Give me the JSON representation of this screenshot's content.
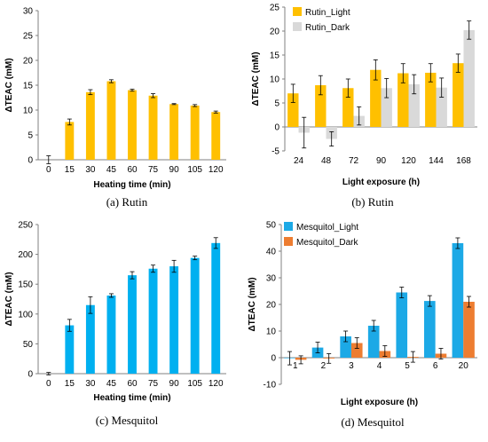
{
  "chart_data": [
    {
      "type": "bar",
      "caption": "(a) Rutin",
      "xlabel": "Heating time (min)",
      "ylabel": "ΔTEAC (mM)",
      "ylim": [
        0,
        30
      ],
      "yticks": [
        0,
        5,
        10,
        15,
        20,
        25,
        30
      ],
      "categories": [
        "0",
        "15",
        "30",
        "45",
        "60",
        "75",
        "90",
        "105",
        "120"
      ],
      "series": [
        {
          "color": "#FFC000",
          "values": [
            0,
            7.6,
            13.6,
            15.8,
            14.0,
            12.9,
            11.2,
            10.9,
            9.6
          ],
          "errors": [
            0.8,
            0.6,
            0.5,
            0.3,
            0.2,
            0.4,
            0.1,
            0.2,
            0.2
          ]
        }
      ],
      "legend": "none"
    },
    {
      "type": "bar",
      "caption": "(b) Rutin",
      "xlabel": "Light exposure (h)",
      "ylabel": "ΔTEAC (mM)",
      "ylim": [
        -5,
        25
      ],
      "yticks": [
        -5,
        0,
        5,
        10,
        15,
        20,
        25
      ],
      "categories": [
        "24",
        "48",
        "72",
        "90",
        "120",
        "144",
        "168"
      ],
      "series": [
        {
          "name": "Rutin_Light",
          "color": "#FFC000",
          "values": [
            7.0,
            8.7,
            8.1,
            11.9,
            11.2,
            11.3,
            13.3
          ],
          "errors": [
            1.9,
            2.0,
            1.9,
            2.1,
            2.0,
            1.9,
            1.9
          ]
        },
        {
          "name": "Rutin_Dark",
          "color": "#D9D9D9",
          "values": [
            -1.2,
            -2.5,
            2.3,
            8.1,
            8.9,
            8.2,
            20.2
          ],
          "errors": [
            3.2,
            1.5,
            1.9,
            2.0,
            2.0,
            2.0,
            1.9
          ]
        }
      ],
      "legend": "top-left"
    },
    {
      "type": "bar",
      "caption": "(c) Mesquitol",
      "xlabel": "Heating time (min)",
      "ylabel": "ΔTEAC (mM)",
      "ylim": [
        0,
        250
      ],
      "yticks": [
        0,
        50,
        100,
        150,
        200,
        250
      ],
      "categories": [
        "0",
        "15",
        "30",
        "45",
        "60",
        "75",
        "90",
        "105",
        "120"
      ],
      "series": [
        {
          "color": "#00B0F0",
          "values": [
            0,
            81,
            115,
            131,
            165,
            176,
            180,
            194,
            219
          ],
          "errors": [
            2,
            10,
            14,
            3,
            6,
            6,
            10,
            3,
            9
          ]
        }
      ],
      "legend": "none"
    },
    {
      "type": "bar",
      "caption": "(d) Mesquitol",
      "xlabel": "Light exposure (h)",
      "ylabel": "ΔTEAC (mM)",
      "ylim": [
        -10,
        50
      ],
      "yticks": [
        -10,
        0,
        10,
        20,
        30,
        40,
        50
      ],
      "categories": [
        "1",
        "2",
        "3",
        "4",
        "5",
        "6",
        "20"
      ],
      "series": [
        {
          "name": "Mesquitol_Light",
          "color": "#1CA9E6",
          "values": [
            -0.2,
            3.8,
            8.0,
            12.0,
            24.5,
            21.3,
            43.0
          ],
          "errors": [
            2.5,
            2.0,
            2.0,
            2.0,
            2.0,
            2.0,
            2.0
          ]
        },
        {
          "name": "Mesquitol_Dark",
          "color": "#ED7D31",
          "values": [
            -0.8,
            -0.3,
            5.5,
            2.5,
            0.3,
            1.5,
            21.0
          ],
          "errors": [
            1.5,
            1.8,
            2.0,
            2.0,
            2.0,
            2.0,
            2.0
          ]
        }
      ],
      "legend": "top-left"
    }
  ]
}
